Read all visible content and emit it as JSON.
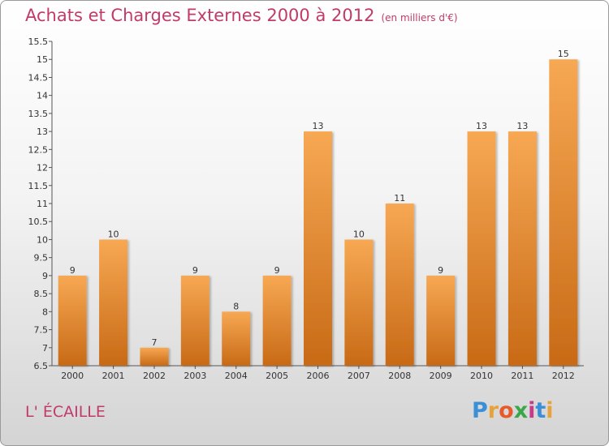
{
  "title": "Achats et Charges Externes 2000 à 2012",
  "unit": "(en milliers d'€)",
  "commune": "L' ÉCAILLE",
  "logo": {
    "letters": [
      "P",
      "r",
      "o",
      "x",
      "i",
      "t",
      "i"
    ],
    "colors": [
      "#3a8fd6",
      "#e8a23a",
      "#e85a2a",
      "#3aa84a",
      "#c93a8a",
      "#3a8fd6",
      "#e8a23a"
    ]
  },
  "colors": {
    "bar_light": "#f7a853",
    "bar_dark": "#c86a16",
    "title": "#c13a6a"
  },
  "chart_data": {
    "type": "bar",
    "title": "Achats et Charges Externes 2000 à 2012",
    "xlabel": "",
    "ylabel": "",
    "categories": [
      "2000",
      "2001",
      "2002",
      "2003",
      "2004",
      "2005",
      "2006",
      "2007",
      "2008",
      "2009",
      "2010",
      "2011",
      "2012"
    ],
    "values": [
      9,
      10,
      7,
      9,
      8,
      9,
      13,
      10,
      11,
      9,
      13,
      13,
      15
    ],
    "data_labels": [
      "9",
      "10",
      "7",
      "9",
      "8",
      "9",
      "13",
      "10",
      "11",
      "9",
      "13",
      "13",
      "15"
    ],
    "ylim": [
      6.5,
      15.5
    ],
    "yticks": [
      6.5,
      7,
      7.5,
      8,
      8.5,
      9,
      9.5,
      10,
      10.5,
      11,
      11.5,
      12,
      12.5,
      13,
      13.5,
      14,
      14.5,
      15,
      15.5
    ],
    "ytick_labels": [
      "6.5",
      "7",
      "7.5",
      "8",
      "8.5",
      "9",
      "9.5",
      "10",
      "10.5",
      "11",
      "11.5",
      "12",
      "12.5",
      "13",
      "13.5",
      "14",
      "14.5",
      "15",
      "15.5"
    ],
    "grid": false,
    "legend": "none"
  }
}
